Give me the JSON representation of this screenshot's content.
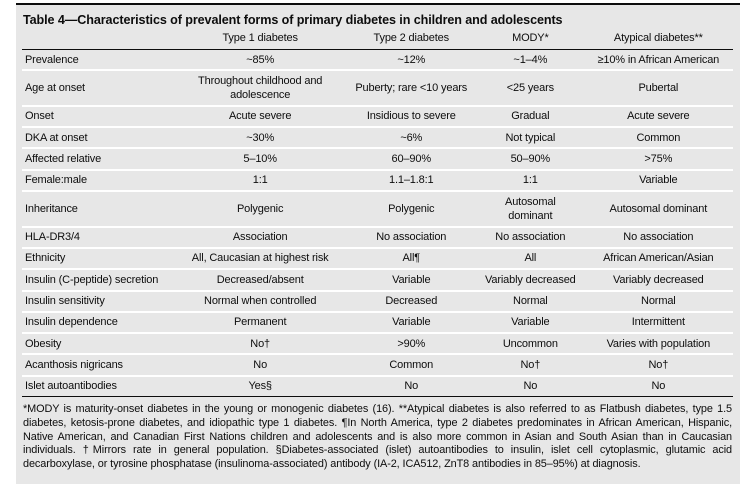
{
  "table": {
    "title": "Table 4—Characteristics of prevalent forms of primary diabetes in children and adolescents",
    "columns": [
      "",
      "Type 1 diabetes",
      "Type 2 diabetes",
      "MODY*",
      "Atypical diabetes**"
    ],
    "rows": [
      {
        "label": "Prevalence",
        "values": [
          "~85%",
          "~12%",
          "~1–4%",
          "≥10% in African American"
        ]
      },
      {
        "label": "Age at onset",
        "values": [
          "Throughout childhood and adolescence",
          "Puberty; rare <10 years",
          "<25 years",
          "Pubertal"
        ]
      },
      {
        "label": "Onset",
        "values": [
          "Acute severe",
          "Insidious to severe",
          "Gradual",
          "Acute severe"
        ]
      },
      {
        "label": "DKA at onset",
        "values": [
          "~30%",
          "~6%",
          "Not typical",
          "Common"
        ]
      },
      {
        "label": "Affected relative",
        "values": [
          "5–10%",
          "60–90%",
          "50–90%",
          ">75%"
        ]
      },
      {
        "label": "Female:male",
        "values": [
          "1:1",
          "1.1–1.8:1",
          "1:1",
          "Variable"
        ]
      },
      {
        "label": "Inheritance",
        "values": [
          "Polygenic",
          "Polygenic",
          "Autosomal\ndominant",
          "Autosomal dominant"
        ]
      },
      {
        "label": "HLA-DR3/4",
        "values": [
          "Association",
          "No association",
          "No association",
          "No association"
        ]
      },
      {
        "label": "Ethnicity",
        "values": [
          "All, Caucasian at highest risk",
          "All¶",
          "All",
          "African American/Asian"
        ]
      },
      {
        "label": "Insulin (C-peptide) secretion",
        "values": [
          "Decreased/absent",
          "Variable",
          "Variably decreased",
          "Variably decreased"
        ]
      },
      {
        "label": "Insulin sensitivity",
        "values": [
          "Normal when controlled",
          "Decreased",
          "Normal",
          "Normal"
        ]
      },
      {
        "label": "Insulin dependence",
        "values": [
          "Permanent",
          "Variable",
          "Variable",
          "Intermittent"
        ]
      },
      {
        "label": "Obesity",
        "values": [
          "No†",
          ">90%",
          "Uncommon",
          "Varies with population"
        ]
      },
      {
        "label": "Acanthosis nigricans",
        "values": [
          "No",
          "Common",
          "No†",
          "No†"
        ]
      },
      {
        "label": "Islet autoantibodies",
        "values": [
          "Yes§",
          "No",
          "No",
          "No"
        ]
      }
    ],
    "footnote": "*MODY is maturity-onset diabetes in the young or monogenic diabetes (16). **Atypical diabetes is also referred to as Flatbush diabetes, type 1.5 diabetes, ketosis-prone diabetes, and idiopathic type 1 diabetes. ¶In North America, type 2 diabetes predominates in African American, Hispanic, Native American, and Canadian First Nations children and adolescents and is also more common in Asian and South Asian than in Caucasian individuals. †Mirrors rate in general population. §Diabetes-associated (islet) autoantibodies to insulin, islet cell cytoplasmic, glutamic acid decarboxylase, or tyrosine phosphatase (insulinoma-associated) antibody (IA-2, ICA512, ZnT8 antibodies in 85–95%) at diagnosis."
  },
  "colors": {
    "panel_bg": "#e7e7e7",
    "row_divider": "#ffffff",
    "rule": "#0d0d0d",
    "text": "#0d0d0d",
    "page_bg": "#ffffff"
  }
}
